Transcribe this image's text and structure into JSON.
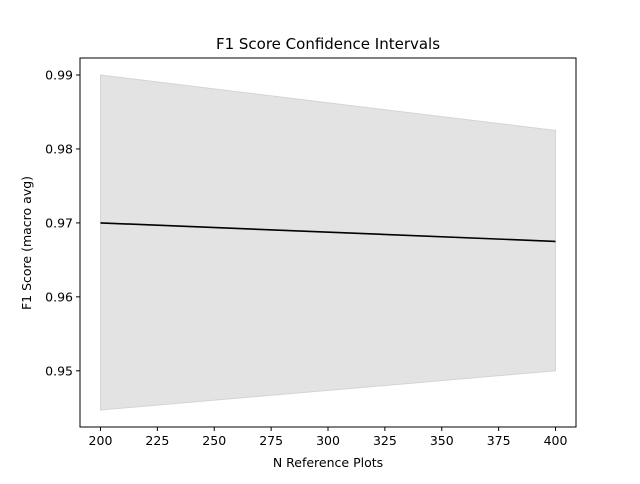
{
  "chart_data": {
    "type": "line",
    "title": "F1 Score Confidence Intervals",
    "xlabel": "N Reference Plots",
    "ylabel": "F1 Score (macro avg)",
    "xlim": [
      191,
      409
    ],
    "ylim": [
      0.9424,
      0.9923
    ],
    "x_ticks": [
      200,
      225,
      250,
      275,
      300,
      325,
      350,
      375,
      400
    ],
    "y_ticks": [
      0.95,
      0.96,
      0.97,
      0.98,
      0.99
    ],
    "x_tick_labels": [
      "200",
      "225",
      "250",
      "275",
      "300",
      "325",
      "350",
      "375",
      "400"
    ],
    "y_tick_labels": [
      "0.95",
      "0.96",
      "0.97",
      "0.98",
      "0.99"
    ],
    "grid": false,
    "legend": "none",
    "series": [
      {
        "x": [
          200,
          400
        ],
        "values": [
          0.97,
          0.9675
        ],
        "color": "#000000"
      }
    ],
    "band": {
      "x": [
        200,
        400
      ],
      "lower": [
        0.9447,
        0.95
      ],
      "upper": [
        0.99,
        0.9825
      ],
      "fill": "#e3e3e3",
      "edge": "#d4d4d4"
    }
  }
}
